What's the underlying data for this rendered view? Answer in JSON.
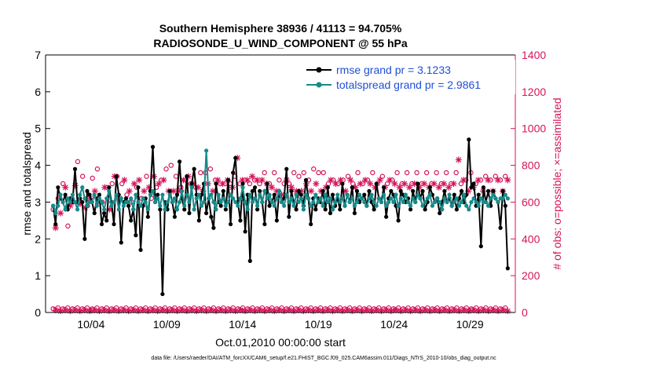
{
  "chart_data": {
    "type": "line",
    "title_line1": "Southern Hemisphere 38936 / 41113 = 94.705%",
    "title_line2": "RADIOSONDE_U_WIND_COMPONENT @ 55 hPa",
    "ylabel_left": "rmse and totalspread",
    "ylabel_right": "# of obs: o=possible; ×=assimilated",
    "xlabel": "Oct.01,2010 00:00:00 start",
    "footnote": "data file: /Users/raeder/DAI/ATM_forcXX/CAM6_setup/f.e21.FHIST_BGC.f09_025.CAM6assim.011/Diags_NTrS_2010-10/obs_diag_output.nc",
    "ylim_left": [
      0,
      7
    ],
    "ylim_right": [
      0,
      1400
    ],
    "xlim": [
      1.0,
      32.0
    ],
    "left_ticks": [
      "0",
      "1",
      "2",
      "3",
      "4",
      "5",
      "6",
      "7"
    ],
    "right_ticks": [
      "0",
      "200",
      "400",
      "600",
      "800",
      "1000",
      "1200",
      "1400"
    ],
    "x_ticks": [
      {
        "day": 4,
        "label": "10/04"
      },
      {
        "day": 9,
        "label": "10/09"
      },
      {
        "day": 14,
        "label": "10/14"
      },
      {
        "day": 19,
        "label": "10/19"
      },
      {
        "day": 24,
        "label": "10/24"
      },
      {
        "day": 29,
        "label": "10/29"
      }
    ],
    "colors": {
      "rmse": "#000000",
      "spread": "#178a8a",
      "obs": "#d4145a",
      "legend_text": "#1f4fd6",
      "axis": "#000000"
    },
    "series": [
      {
        "name": "rmse grand pr = 3.1233",
        "values": [
          2.9,
          2.4,
          3.4,
          3.1,
          3.0,
          3.2,
          2.8,
          3.1,
          3.0,
          3.9,
          3.0,
          3.1,
          3.0,
          2.0,
          3.3,
          3.2,
          3.0,
          2.7,
          3.1,
          3.2,
          2.4,
          2.7,
          2.5,
          3.4,
          3.0,
          2.4,
          3.7,
          3.2,
          1.9,
          3.0,
          3.1,
          2.9,
          2.5,
          2.8,
          2.1,
          3.4,
          1.7,
          2.9,
          3.1,
          2.6,
          3.3,
          4.5,
          3.0,
          3.2,
          2.8,
          0.5,
          3.0,
          2.8,
          3.3,
          3.0,
          2.6,
          3.2,
          4.1,
          3.1,
          2.8,
          3.7,
          2.7,
          3.5,
          3.9,
          3.2,
          2.5,
          3.2,
          3.5,
          2.7,
          3.1,
          2.6,
          2.3,
          3.5,
          3.0,
          2.9,
          3.3,
          2.8,
          3.6,
          2.4,
          3.8,
          4.2,
          3.0,
          2.5,
          3.5,
          2.2,
          3.2,
          1.4,
          3.3,
          3.4,
          2.8,
          3.3,
          3.0,
          2.4,
          3.5,
          2.9,
          3.0,
          3.2,
          2.5,
          3.3,
          3.0,
          3.1,
          3.9,
          2.6,
          3.3,
          3.0,
          2.8,
          3.3,
          3.2,
          2.9,
          3.6,
          3.1,
          2.4,
          3.1,
          2.8,
          3.1,
          3.0,
          3.3,
          2.8,
          3.4,
          2.7,
          3.2,
          2.9,
          3.1,
          2.8,
          3.5,
          2.9,
          3.2,
          3.0,
          3.4,
          2.7,
          3.3,
          3.0,
          3.1,
          3.2,
          2.9,
          3.3,
          3.0,
          2.8,
          3.5,
          3.1,
          3.0,
          3.4,
          2.6,
          3.1,
          3.3,
          3.2,
          2.9,
          2.5,
          3.3,
          3.2,
          3.0,
          3.1,
          2.8,
          3.3,
          3.0,
          3.5,
          3.1,
          3.3,
          2.8,
          3.0,
          3.4,
          3.2,
          3.0,
          3.1,
          2.7,
          3.0,
          3.3,
          3.0,
          3.1,
          2.9,
          3.2,
          2.8,
          3.1,
          3.3,
          3.0,
          3.2,
          4.7,
          3.4,
          3.5,
          2.9,
          3.2,
          1.8,
          3.4,
          3.0,
          3.3,
          2.9,
          3.3,
          3.1,
          3.0,
          2.3,
          3.3,
          2.9,
          1.2
        ]
      },
      {
        "name": "totalspread grand pr = 2.9861",
        "values": [
          2.9,
          2.7,
          2.9,
          3.2,
          3.0,
          2.8,
          3.1,
          3.0,
          3.2,
          3.0,
          2.8,
          3.2,
          3.4,
          3.1,
          2.9,
          3.0,
          3.0,
          3.2,
          2.9,
          3.1,
          3.0,
          2.8,
          3.1,
          3.3,
          2.9,
          3.0,
          3.2,
          2.8,
          3.1,
          2.9,
          3.0,
          3.0,
          3.1,
          2.8,
          3.2,
          3.0,
          2.9,
          3.1,
          3.0,
          2.8,
          3.2,
          3.3,
          3.0,
          3.1,
          2.9,
          3.2,
          2.8,
          3.0,
          3.2,
          3.0,
          3.1,
          2.8,
          3.0,
          3.3,
          2.9,
          3.2,
          3.0,
          3.4,
          2.8,
          3.1,
          3.2,
          2.9,
          3.0,
          4.4,
          3.1,
          3.2,
          3.0,
          2.8,
          3.2,
          3.0,
          3.1,
          2.9,
          3.0,
          3.2,
          3.1,
          3.0,
          2.9,
          3.1,
          3.4,
          3.0,
          2.8,
          3.2,
          3.0,
          3.1,
          2.9,
          3.2,
          3.0,
          3.3,
          3.1,
          3.2,
          3.0,
          2.9,
          3.1,
          3.3,
          3.0,
          2.9,
          3.2,
          3.0,
          3.1,
          2.9,
          3.2,
          3.0,
          3.1,
          2.8,
          3.2,
          3.1,
          2.9,
          3.0,
          3.2,
          3.0,
          3.1,
          2.9,
          3.2,
          3.0,
          3.1,
          2.8,
          3.0,
          3.2,
          3.0,
          3.1,
          2.9,
          3.2,
          3.0,
          3.1,
          2.9,
          3.0,
          3.2,
          3.1,
          3.0,
          2.9,
          3.1,
          3.2,
          3.0,
          2.9,
          3.1,
          3.0,
          3.2,
          2.9,
          3.0,
          3.1,
          3.0,
          3.2,
          2.9,
          3.1,
          3.0,
          3.2,
          3.0,
          2.9,
          3.1,
          3.0,
          3.2,
          3.1,
          2.9,
          3.0,
          3.1,
          3.2,
          2.9,
          3.0,
          3.1,
          3.0,
          2.8,
          3.1,
          3.0,
          3.2,
          2.9,
          3.0,
          3.1,
          2.9,
          3.0,
          3.2,
          2.9,
          2.8,
          3.0,
          3.1,
          3.0,
          2.9,
          3.1,
          3.0,
          3.0,
          2.9,
          3.1,
          3.2,
          3.1,
          3.0,
          3.1,
          3.1,
          3.2,
          3.1
        ]
      }
    ],
    "obs_possible_high": [
      560,
      500,
      620,
      580,
      700,
      720,
      470,
      620,
      600,
      730,
      820,
      620,
      740,
      600,
      580,
      660,
      730,
      700,
      780,
      640,
      600,
      720,
      680,
      600,
      700,
      780,
      740,
      660,
      700,
      760,
      640,
      700,
      600,
      740,
      680,
      760,
      620,
      700,
      740,
      720,
      620,
      780,
      680,
      740,
      720,
      760,
      780,
      700,
      800,
      700,
      740,
      700,
      680,
      760,
      720,
      780,
      700,
      740,
      680,
      720,
      760,
      700,
      760,
      740,
      780,
      700,
      720,
      760,
      700,
      740,
      700,
      760,
      700,
      720,
      740,
      880,
      700,
      760,
      720,
      760,
      700,
      780,
      720,
      760,
      700,
      760,
      760,
      740,
      700,
      720,
      760,
      700,
      720,
      680,
      700,
      760,
      700,
      720,
      760,
      700,
      740,
      700,
      760,
      740,
      720,
      700,
      780,
      740,
      760,
      700,
      760,
      720,
      700,
      760,
      720,
      740,
      700,
      760,
      720,
      700,
      740,
      760,
      700,
      720,
      760,
      740,
      700,
      760,
      720,
      740,
      760,
      720,
      700,
      760,
      740,
      720,
      700,
      760,
      720,
      740,
      760,
      720,
      700,
      740,
      760,
      720,
      700,
      740,
      760,
      720,
      700,
      740,
      760,
      720,
      700,
      740,
      760,
      720,
      700,
      740,
      760,
      720,
      700,
      740,
      760,
      880,
      700,
      760,
      720,
      700,
      760,
      720,
      700,
      760,
      720,
      700,
      740,
      760,
      720,
      700,
      740,
      760,
      720,
      700,
      740,
      760
    ],
    "obs_assim_high": [
      520,
      460,
      580,
      540,
      660,
      680,
      440,
      580,
      560,
      690,
      790,
      590,
      700,
      570,
      540,
      620,
      690,
      660,
      740,
      600,
      560,
      680,
      640,
      560,
      660,
      740,
      700,
      620,
      660,
      720,
      600,
      660,
      560,
      700,
      640,
      720,
      580,
      660,
      700,
      680,
      580,
      740,
      640,
      700,
      680,
      720,
      740,
      660,
      760,
      660,
      700,
      660,
      640,
      720,
      680,
      740,
      660,
      700,
      640,
      680,
      720,
      660,
      720,
      700,
      740,
      660,
      680,
      720,
      660,
      700,
      660,
      720,
      660,
      680,
      700,
      840,
      660,
      720,
      680,
      720,
      660,
      740,
      680,
      720,
      660,
      720,
      720,
      700,
      660,
      680,
      720,
      660,
      680,
      640,
      660,
      720,
      660,
      680,
      720,
      660,
      700,
      660,
      720,
      700,
      680,
      660,
      740,
      700,
      720,
      660,
      720,
      680,
      660,
      720,
      680,
      700,
      660,
      720,
      680,
      660,
      700,
      720,
      660,
      680,
      720,
      700,
      660,
      720,
      680,
      700,
      720,
      680,
      660,
      720,
      700,
      680,
      660,
      720,
      680,
      700,
      720,
      680,
      660,
      700,
      720,
      680,
      660,
      700,
      720,
      680,
      660,
      700,
      720,
      680,
      660,
      700,
      720,
      680,
      660,
      700,
      720,
      680,
      660,
      700,
      720,
      830,
      660,
      720,
      680,
      660,
      720,
      680,
      660,
      720,
      680,
      660,
      700,
      720,
      680,
      660,
      700,
      720,
      680,
      660,
      700,
      720
    ],
    "obs_possible_low": [
      20,
      15,
      25,
      10,
      20,
      15,
      25,
      10,
      20,
      15,
      25,
      10,
      20,
      15,
      25,
      10,
      20,
      15,
      25,
      10,
      20,
      15,
      25,
      10,
      20,
      15,
      25,
      10,
      20,
      15,
      25,
      10,
      20,
      15,
      25,
      10,
      20,
      15,
      25,
      10,
      20,
      15,
      25,
      10,
      20,
      15,
      25,
      10,
      20,
      15,
      25,
      10,
      20,
      15,
      25,
      10,
      20,
      15,
      25,
      10,
      20,
      15,
      25,
      10,
      20,
      15,
      25,
      10,
      20,
      15,
      25,
      10,
      20,
      15,
      25,
      10,
      20,
      15,
      25,
      10,
      20,
      15,
      25,
      10,
      20,
      15,
      25,
      10,
      20,
      15,
      25,
      10,
      20,
      15,
      25,
      10,
      20,
      15,
      25,
      10,
      20,
      15,
      25,
      10,
      20,
      15,
      25,
      10,
      20,
      15,
      25,
      10,
      20,
      15,
      25,
      10,
      20,
      15,
      25,
      10,
      20,
      15,
      25,
      10,
      20,
      15,
      25,
      10,
      20,
      15,
      25,
      10,
      20,
      15,
      25,
      10,
      20,
      15,
      25,
      10,
      20,
      15,
      25,
      10,
      20,
      15,
      25,
      10,
      20,
      15,
      25,
      10,
      20,
      15,
      25,
      10,
      20,
      15,
      25,
      10,
      20,
      15,
      25,
      10,
      20,
      15,
      25,
      10,
      20,
      15,
      25,
      10,
      20,
      15,
      25,
      10,
      20,
      15,
      25,
      10,
      20,
      15,
      25,
      10,
      20,
      15,
      25,
      10
    ],
    "obs_assim_low": [
      18,
      13,
      23,
      8,
      18,
      13,
      23,
      8,
      18,
      13,
      23,
      8,
      18,
      13,
      23,
      8,
      18,
      13,
      23,
      8,
      18,
      13,
      23,
      8,
      18,
      13,
      23,
      8,
      18,
      13,
      23,
      8,
      18,
      13,
      23,
      8,
      18,
      13,
      23,
      8,
      18,
      13,
      23,
      8,
      18,
      13,
      23,
      8,
      18,
      13,
      23,
      8,
      18,
      13,
      23,
      8,
      18,
      13,
      23,
      8,
      18,
      13,
      23,
      8,
      18,
      13,
      23,
      8,
      18,
      13,
      23,
      8,
      18,
      13,
      23,
      8,
      18,
      13,
      23,
      8,
      18,
      13,
      23,
      8,
      18,
      13,
      23,
      8,
      18,
      13,
      23,
      8,
      18,
      13,
      23,
      8,
      18,
      13,
      23,
      8,
      18,
      13,
      23,
      8,
      18,
      13,
      23,
      8,
      18,
      13,
      23,
      8,
      18,
      13,
      23,
      8,
      18,
      13,
      23,
      8,
      18,
      13,
      23,
      8,
      18,
      13,
      23,
      8,
      18,
      13,
      23,
      8,
      18,
      13,
      23,
      8,
      18,
      13,
      23,
      8,
      18,
      13,
      23,
      8,
      18,
      13,
      23,
      8,
      18,
      13,
      23,
      8,
      18,
      13,
      23,
      8,
      18,
      13,
      23,
      8,
      18,
      13,
      23,
      8,
      18,
      13,
      23,
      8,
      18,
      13,
      23,
      8,
      18,
      13,
      23,
      8,
      18,
      13,
      23,
      8,
      18,
      13,
      23,
      8,
      18,
      13,
      23,
      8
    ]
  }
}
